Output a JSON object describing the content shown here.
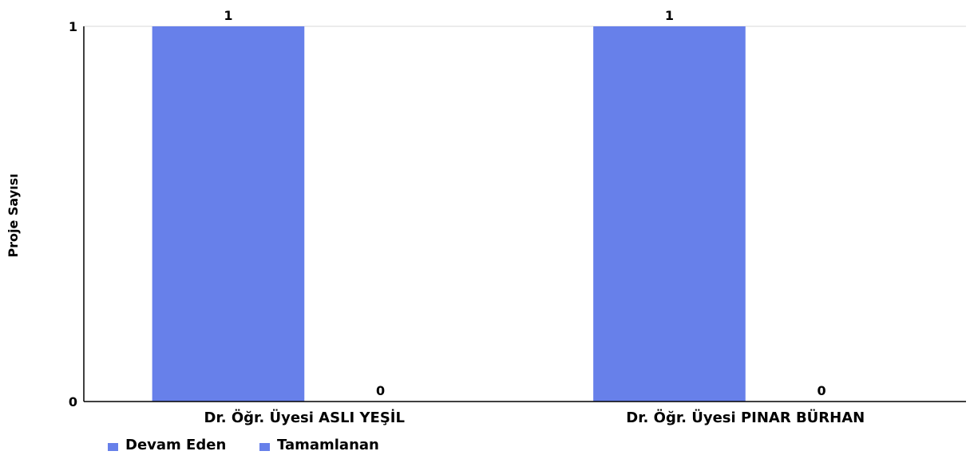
{
  "chart_data": {
    "type": "bar",
    "categories": [
      "Dr. Öğr. Üyesi ASLI YEŞİL",
      "Dr. Öğr. Üyesi PINAR BÜRHAN"
    ],
    "series": [
      {
        "name": "Devam Eden",
        "values": [
          1,
          1
        ],
        "color": "#6780ea"
      },
      {
        "name": "Tamamlanan",
        "values": [
          0,
          0
        ],
        "color": "#6780ea"
      }
    ],
    "ylabel": "Proje Sayısı",
    "ylim": [
      0,
      1
    ],
    "yticks": [
      "0",
      "1"
    ],
    "grid": true,
    "legend": "bottom-left"
  }
}
